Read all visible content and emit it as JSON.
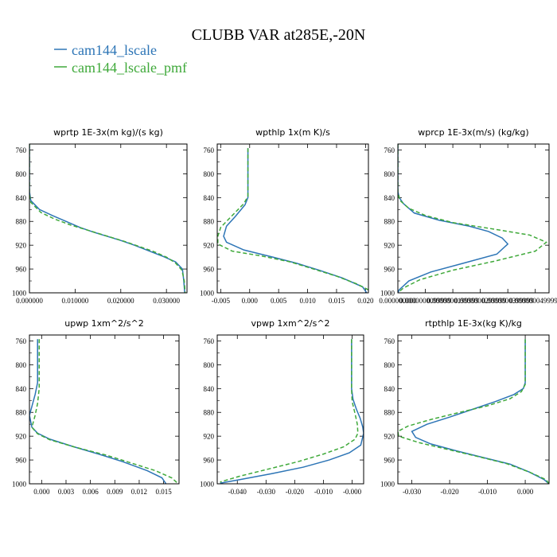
{
  "title": "CLUBB VAR at285E,-20N",
  "legend": [
    {
      "label": "cam144_lscale",
      "color": "#2d75b6",
      "dash": "solid"
    },
    {
      "label": "cam144_lscale_pmf",
      "color": "#3fa93a",
      "dash": "dashed"
    }
  ],
  "chart_data": [
    {
      "type": "line",
      "title": "wprtp   1E-3x(m kg)/(s kg)",
      "ylim": [
        1000,
        750
      ],
      "yticks": [
        760,
        800,
        840,
        880,
        920,
        960,
        1000
      ],
      "xlim": [
        0,
        0.0345
      ],
      "xticks": [
        0,
        0.01,
        0.02,
        0.03
      ],
      "xtick_labels": [
        "0.000000",
        "0.010000",
        "0.020000",
        "0.030000"
      ],
      "series": [
        {
          "name": "cam144_lscale",
          "points": [
            [
              0,
              750
            ],
            [
              0,
              830
            ],
            [
              0.0003,
              845
            ],
            [
              0.0022,
              860
            ],
            [
              0.005,
              870
            ],
            [
              0.008,
              880
            ],
            [
              0.011,
              890
            ],
            [
              0.014,
              898
            ],
            [
              0.017,
              905
            ],
            [
              0.02,
              912
            ],
            [
              0.023,
              920
            ],
            [
              0.026,
              929
            ],
            [
              0.029,
              938
            ],
            [
              0.032,
              948
            ],
            [
              0.0335,
              960
            ],
            [
              0.0338,
              980
            ],
            [
              0.034,
              1000
            ]
          ]
        },
        {
          "name": "cam144_lscale_pmf",
          "points": [
            [
              0,
              750
            ],
            [
              0,
              835
            ],
            [
              0.0003,
              848
            ],
            [
              0.0025,
              865
            ],
            [
              0.0055,
              876
            ],
            [
              0.009,
              886
            ],
            [
              0.012,
              893
            ],
            [
              0.015,
              900
            ],
            [
              0.018,
              907
            ],
            [
              0.021,
              914
            ],
            [
              0.024,
              922
            ],
            [
              0.027,
              930
            ],
            [
              0.03,
              940
            ],
            [
              0.032,
              950
            ],
            [
              0.0334,
              962
            ],
            [
              0.0339,
              980
            ],
            [
              0.0341,
              1000
            ]
          ]
        }
      ]
    },
    {
      "type": "line",
      "title": "wpthlp   1x(m K)/s",
      "ylim": [
        1000,
        750
      ],
      "yticks": [
        760,
        800,
        840,
        880,
        920,
        960,
        1000
      ],
      "xlim": [
        -0.0056,
        0.0205
      ],
      "xticks": [
        -0.005,
        0,
        0.005,
        0.01,
        0.015,
        0.02
      ],
      "xtick_labels": [
        "-0.005",
        "0.000",
        "0.005",
        "0.010",
        "0.015",
        "0.020"
      ],
      "series": [
        {
          "name": "cam144_lscale",
          "points": [
            [
              -0.0003,
              757
            ],
            [
              -0.0003,
              840
            ],
            [
              -0.0008,
              852
            ],
            [
              -0.0025,
              872
            ],
            [
              -0.004,
              888
            ],
            [
              -0.0045,
              905
            ],
            [
              -0.004,
              915
            ],
            [
              -0.001,
              928
            ],
            [
              0.004,
              940
            ],
            [
              0.008,
              950
            ],
            [
              0.012,
              962
            ],
            [
              0.016,
              975
            ],
            [
              0.0195,
              990
            ],
            [
              0.0202,
              1000
            ]
          ]
        },
        {
          "name": "cam144_lscale_pmf",
          "points": [
            [
              -0.0003,
              757
            ],
            [
              -0.0003,
              838
            ],
            [
              -0.001,
              850
            ],
            [
              -0.003,
              870
            ],
            [
              -0.005,
              890
            ],
            [
              -0.0055,
              905
            ],
            [
              -0.0055,
              918
            ],
            [
              -0.003,
              930
            ],
            [
              0.002,
              938
            ],
            [
              0.007,
              948
            ],
            [
              0.011,
              960
            ],
            [
              0.015,
              972
            ],
            [
              0.0185,
              985
            ],
            [
              0.0205,
              995
            ]
          ]
        }
      ]
    },
    {
      "type": "line",
      "title": "wprcp   1E-3x(m/s) (kg/kg)",
      "ylim": [
        1000,
        750
      ],
      "yticks": [
        760,
        800,
        840,
        880,
        920,
        960,
        1000
      ],
      "xlim": [
        0,
        5.5e-08
      ],
      "xticks": [
        0,
        1e-08,
        2e-08,
        3e-08,
        4e-08,
        5e-08
      ],
      "xtick_labels": [
        "0.000000000",
        "0.0000000099999",
        "0.0000000199999",
        "0.0000000299999",
        "0.0000000399999",
        "0.0000000499999"
      ],
      "series": [
        {
          "name": "cam144_lscale",
          "points": [
            [
              0,
              750
            ],
            [
              0,
              830
            ],
            [
              5e-10,
              840
            ],
            [
              2e-09,
              850
            ],
            [
              6e-09,
              866
            ],
            [
              1.5e-08,
              878
            ],
            [
              2.6e-08,
              888
            ],
            [
              3.3e-08,
              897
            ],
            [
              3.8e-08,
              908
            ],
            [
              4e-08,
              918
            ],
            [
              3.6e-08,
              935
            ],
            [
              2.4e-08,
              950
            ],
            [
              1.2e-08,
              965
            ],
            [
              4e-09,
              980
            ],
            [
              5e-10,
              995
            ],
            [
              0,
              1000
            ]
          ]
        },
        {
          "name": "cam144_lscale_pmf",
          "points": [
            [
              0,
              750
            ],
            [
              0,
              832
            ],
            [
              8e-10,
              845
            ],
            [
              4e-09,
              858
            ],
            [
              1e-08,
              870
            ],
            [
              2e-08,
              882
            ],
            [
              3.5e-08,
              893
            ],
            [
              4.8e-08,
              903
            ],
            [
              5.4e-08,
              915
            ],
            [
              5e-08,
              930
            ],
            [
              3.5e-08,
              947
            ],
            [
              2e-08,
              962
            ],
            [
              8e-09,
              978
            ],
            [
              2e-09,
              992
            ],
            [
              0,
              1000
            ]
          ]
        }
      ]
    },
    {
      "type": "line",
      "title": "upwp   1xm^2/s^2",
      "ylim": [
        1000,
        750
      ],
      "yticks": [
        760,
        800,
        840,
        880,
        920,
        960,
        1000
      ],
      "xlim": [
        -0.0015,
        0.0169
      ],
      "xticks": [
        0,
        0.003,
        0.006,
        0.009,
        0.012,
        0.015
      ],
      "xtick_labels": [
        "0.000",
        "0.003",
        "0.006",
        "0.009",
        "0.012",
        "0.015"
      ],
      "series": [
        {
          "name": "cam144_lscale",
          "points": [
            [
              -0.0005,
              757
            ],
            [
              -0.0005,
              830
            ],
            [
              -0.0008,
              850
            ],
            [
              -0.0012,
              870
            ],
            [
              -0.0015,
              885
            ],
            [
              -0.0012,
              905
            ],
            [
              -0.0005,
              915
            ],
            [
              0.001,
              925
            ],
            [
              0.004,
              938
            ],
            [
              0.007,
              950
            ],
            [
              0.01,
              963
            ],
            [
              0.013,
              978
            ],
            [
              0.0148,
              990
            ],
            [
              0.0153,
              1000
            ]
          ]
        },
        {
          "name": "cam144_lscale_pmf",
          "points": [
            [
              -0.0003,
              757
            ],
            [
              -0.0003,
              840
            ],
            [
              -0.0005,
              865
            ],
            [
              -0.0008,
              885
            ],
            [
              -0.0012,
              905
            ],
            [
              -0.0005,
              916
            ],
            [
              0.001,
              926
            ],
            [
              0.004,
              938
            ],
            [
              0.008,
              952
            ],
            [
              0.011,
              965
            ],
            [
              0.014,
              978
            ],
            [
              0.016,
              990
            ],
            [
              0.0168,
              1000
            ]
          ]
        }
      ]
    },
    {
      "type": "line",
      "title": "vpwp   1xm^2/s^2",
      "ylim": [
        1000,
        750
      ],
      "yticks": [
        760,
        800,
        840,
        880,
        920,
        960,
        1000
      ],
      "xlim": [
        -0.047,
        0.004
      ],
      "xticks": [
        -0.04,
        -0.03,
        -0.02,
        -0.01,
        0
      ],
      "xtick_labels": [
        "-0.040",
        "-0.030",
        "-0.020",
        "-0.010",
        "-0.000"
      ],
      "series": [
        {
          "name": "cam144_lscale",
          "points": [
            [
              -0.0002,
              757
            ],
            [
              -0.0002,
              840
            ],
            [
              0.0003,
              858
            ],
            [
              0.0015,
              875
            ],
            [
              0.0028,
              890
            ],
            [
              0.0037,
              905
            ],
            [
              0.004,
              915
            ],
            [
              0.003,
              935
            ],
            [
              -0.001,
              948
            ],
            [
              -0.008,
              960
            ],
            [
              -0.017,
              972
            ],
            [
              -0.028,
              983
            ],
            [
              -0.038,
              992
            ],
            [
              -0.046,
              999
            ]
          ]
        },
        {
          "name": "cam144_lscale_pmf",
          "points": [
            [
              -0.0002,
              757
            ],
            [
              -0.0002,
              842
            ],
            [
              0,
              862
            ],
            [
              0.001,
              882
            ],
            [
              0.0018,
              900
            ],
            [
              0.002,
              915
            ],
            [
              0.001,
              925
            ],
            [
              -0.003,
              938
            ],
            [
              -0.01,
              950
            ],
            [
              -0.019,
              963
            ],
            [
              -0.029,
              975
            ],
            [
              -0.039,
              987
            ],
            [
              -0.046,
              997
            ]
          ]
        }
      ]
    },
    {
      "type": "line",
      "title": "rtpthlp   1E-3x(kg K)/kg",
      "ylim": [
        1000,
        750
      ],
      "yticks": [
        760,
        800,
        840,
        880,
        920,
        960,
        1000
      ],
      "xlim": [
        -0.0337,
        0.0063
      ],
      "xticks": [
        -0.03,
        -0.02,
        -0.01,
        0
      ],
      "xtick_labels": [
        "-0.030",
        "-0.020",
        "-0.010",
        "0.000"
      ],
      "series": [
        {
          "name": "cam144_lscale",
          "points": [
            [
              0,
              757
            ],
            [
              0,
              830
            ],
            [
              -0.0005,
              840
            ],
            [
              -0.003,
              850
            ],
            [
              -0.008,
              862
            ],
            [
              -0.014,
              875
            ],
            [
              -0.02,
              888
            ],
            [
              -0.026,
              900
            ],
            [
              -0.03,
              912
            ],
            [
              -0.029,
              922
            ],
            [
              -0.025,
              933
            ],
            [
              -0.018,
              945
            ],
            [
              -0.011,
              956
            ],
            [
              -0.004,
              967
            ],
            [
              0.001,
              980
            ],
            [
              0.005,
              993
            ],
            [
              0.0063,
              1000
            ]
          ]
        },
        {
          "name": "cam144_lscale_pmf",
          "points": [
            [
              0,
              757
            ],
            [
              0,
              833
            ],
            [
              -0.001,
              845
            ],
            [
              -0.004,
              857
            ],
            [
              -0.01,
              869
            ],
            [
              -0.018,
              881
            ],
            [
              -0.025,
              892
            ],
            [
              -0.031,
              903
            ],
            [
              -0.0337,
              912
            ],
            [
              -0.0335,
              920
            ],
            [
              -0.028,
              931
            ],
            [
              -0.02,
              943
            ],
            [
              -0.012,
              955
            ],
            [
              -0.005,
              966
            ],
            [
              0.001,
              980
            ],
            [
              0.0055,
              993
            ],
            [
              0.0063,
              1000
            ]
          ]
        }
      ]
    }
  ]
}
